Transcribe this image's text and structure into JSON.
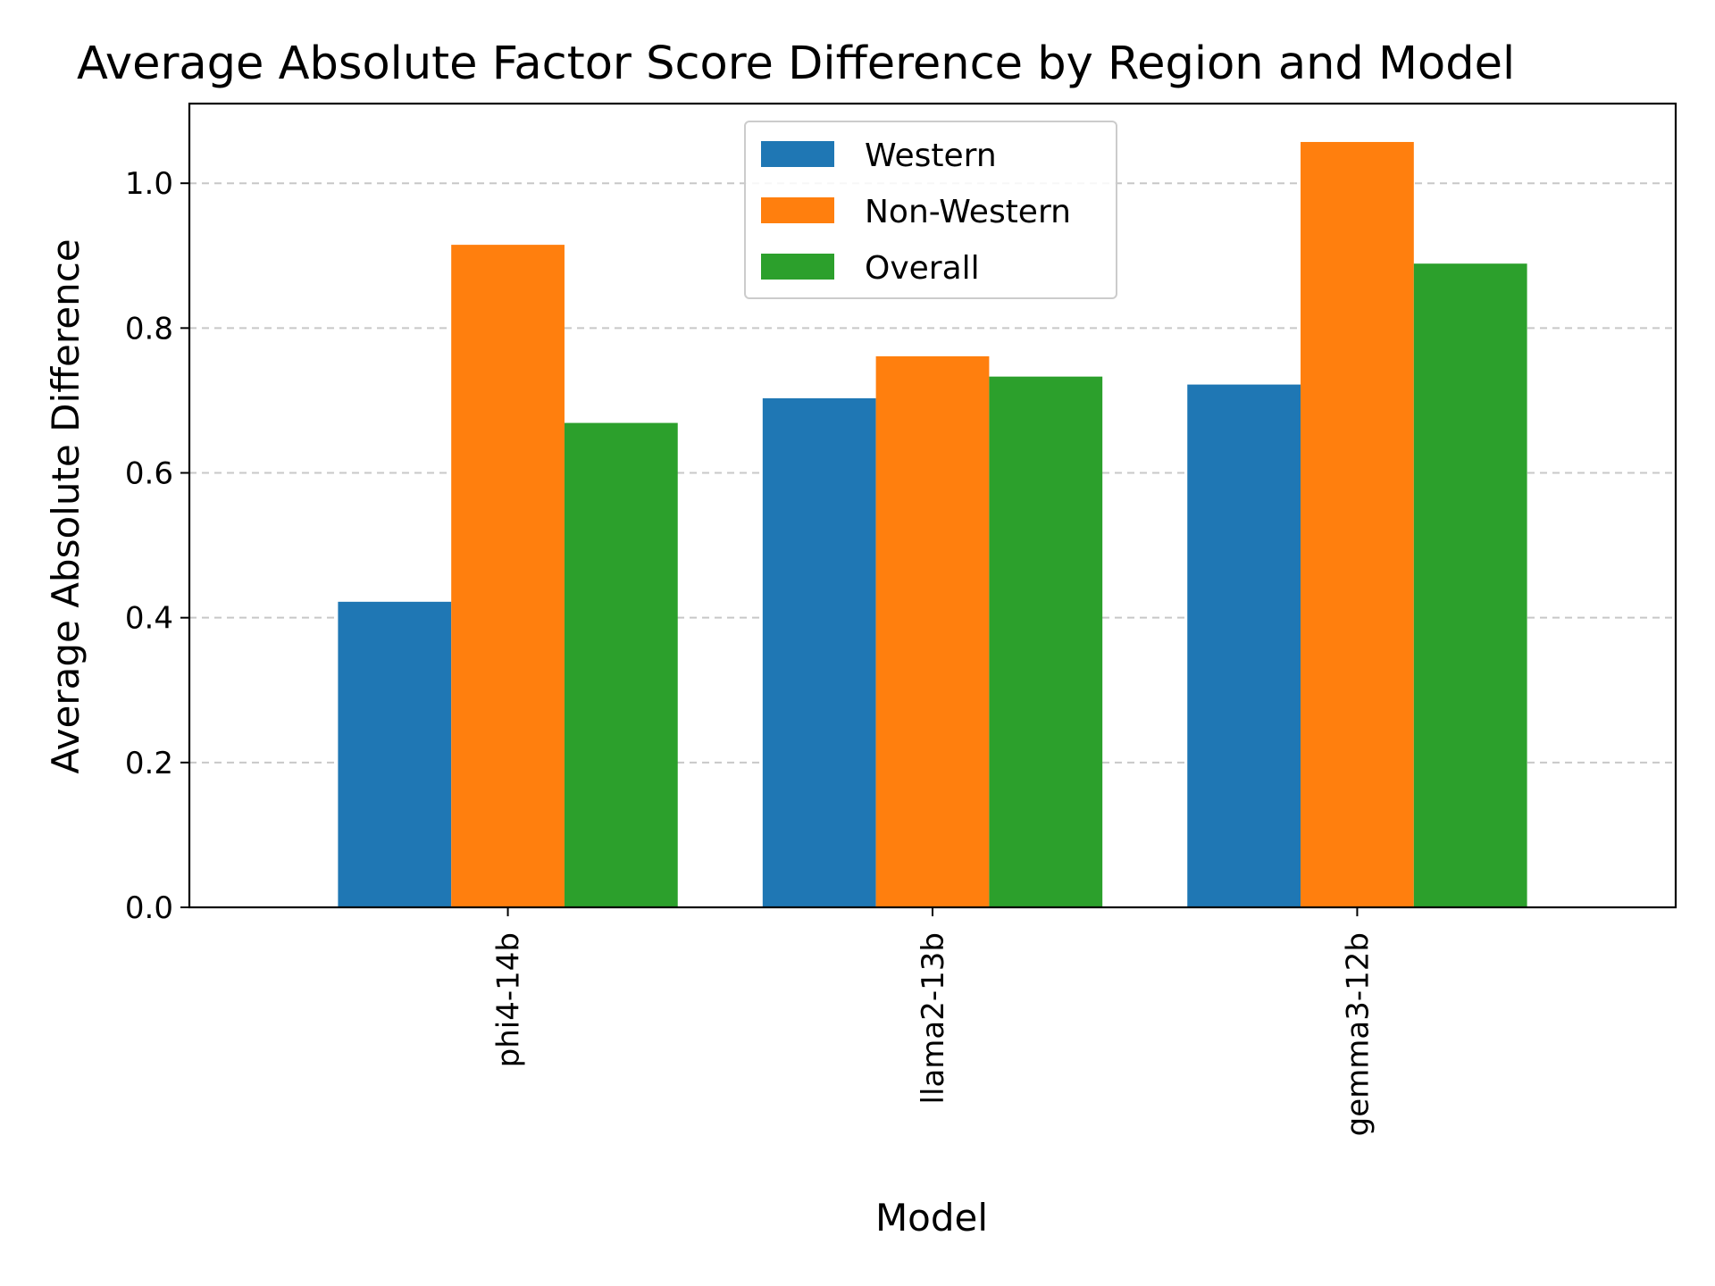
{
  "chart_data": {
    "type": "bar",
    "title": "Average Absolute Factor Score Difference by Region and Model",
    "xlabel": "Model",
    "ylabel": "Average Absolute Difference",
    "categories": [
      "phi4-14b",
      "llama2-13b",
      "gemma3-12b"
    ],
    "series": [
      {
        "name": "Western",
        "color": "#1f77b4",
        "values": [
          0.422,
          0.703,
          0.722
        ]
      },
      {
        "name": "Non-Western",
        "color": "#ff7f0e",
        "values": [
          0.915,
          0.761,
          1.057
        ]
      },
      {
        "name": "Overall",
        "color": "#2ca02c",
        "values": [
          0.669,
          0.733,
          0.889
        ]
      }
    ],
    "ylim": [
      0,
      1.11
    ],
    "yticks": [
      "0.0",
      "0.2",
      "0.4",
      "0.6",
      "0.8",
      "1.0"
    ],
    "grid": "y, dashed",
    "legend_position": "top-center"
  }
}
